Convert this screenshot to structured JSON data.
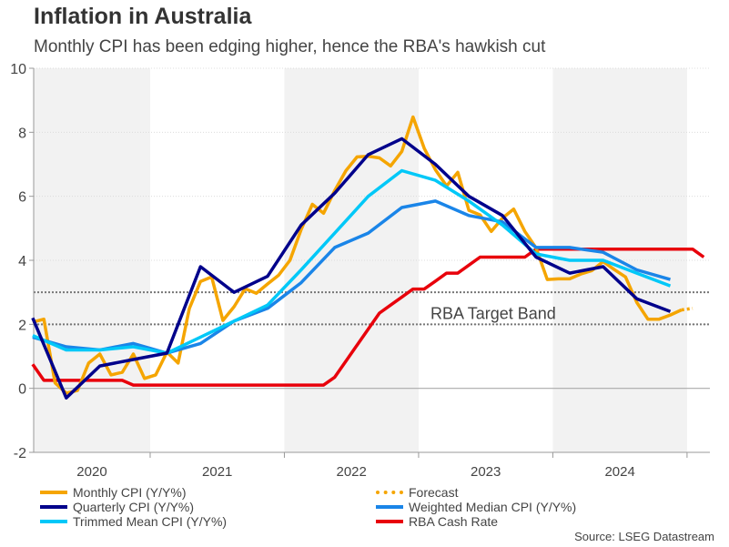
{
  "chart_data": {
    "type": "line",
    "title": "Inflation in Australia",
    "subtitle": "Monthly CPI has been edging higher, hence the RBA's hawkish cut",
    "ylim": [
      -2,
      10
    ],
    "yticks": [
      -2,
      0,
      2,
      4,
      6,
      8,
      10
    ],
    "xticks": [
      "2020",
      "2021",
      "2022",
      "2023",
      "2024"
    ],
    "shaded_years": [
      "2020",
      "2022",
      "2024"
    ],
    "grid": true,
    "target_band": {
      "label": "RBA Target Band",
      "low": 2,
      "high": 3
    },
    "legend_position": "bottom",
    "series": [
      {
        "name": "Monthly CPI (Y/Y%)",
        "color": "#f5a500",
        "frequency": "monthly",
        "start": "2020-02",
        "values": [
          2.07,
          2.16,
          0.17,
          -0.15,
          -0.07,
          0.79,
          1.07,
          0.42,
          0.5,
          1.07,
          0.31,
          0.42,
          1.13,
          0.79,
          2.49,
          3.34,
          3.48,
          2.12,
          2.55,
          3.11,
          2.97,
          3.26,
          3.54,
          4.0,
          4.96,
          5.75,
          5.47,
          6.18,
          6.8,
          7.23,
          7.25,
          7.2,
          6.95,
          7.4,
          8.48,
          7.5,
          6.83,
          6.32,
          6.75,
          5.56,
          5.42,
          4.9,
          5.32,
          5.6,
          4.9,
          4.39,
          3.4,
          3.42,
          3.42,
          3.57,
          3.68,
          3.96,
          3.71,
          3.48,
          2.69,
          2.16,
          2.16,
          2.29,
          2.45
        ]
      },
      {
        "name": "Forecast",
        "color": "#f5a500",
        "frequency": "monthly",
        "start": "2024-12",
        "dotted": true,
        "values": [
          2.45,
          2.5
        ]
      },
      {
        "name": "Quarterly CPI (Y/Y%)",
        "color": "#00008b",
        "frequency": "quarterly",
        "start": "2020-Q1",
        "values": [
          2.2,
          -0.3,
          0.7,
          0.9,
          1.1,
          3.8,
          3.0,
          3.5,
          5.1,
          6.1,
          7.3,
          7.8,
          7.0,
          6.0,
          5.4,
          4.1,
          3.6,
          3.8,
          2.8,
          2.4
        ]
      },
      {
        "name": "Weighted Median CPI (Y/Y%)",
        "color": "#1a85e8",
        "frequency": "quarterly",
        "start": "2020-Q1",
        "values": [
          1.6,
          1.3,
          1.2,
          1.4,
          1.1,
          1.4,
          2.1,
          2.5,
          3.3,
          4.4,
          4.85,
          5.65,
          5.85,
          5.4,
          5.2,
          4.4,
          4.4,
          4.25,
          3.7,
          3.4
        ]
      },
      {
        "name": "Trimmed Mean CPI (Y/Y%)",
        "color": "#00c8f8",
        "frequency": "quarterly",
        "start": "2020-Q1",
        "values": [
          1.65,
          1.2,
          1.2,
          1.3,
          1.1,
          1.6,
          2.1,
          2.6,
          3.7,
          4.85,
          6.0,
          6.8,
          6.5,
          5.85,
          5.1,
          4.2,
          4.0,
          4.0,
          3.6,
          3.2
        ]
      },
      {
        "name": "RBA Cash Rate",
        "color": "#e8000b",
        "frequency": "monthly",
        "start": "2020-02",
        "values": [
          0.75,
          0.25,
          0.25,
          0.25,
          0.25,
          0.25,
          0.25,
          0.25,
          0.25,
          0.1,
          0.1,
          0.1,
          0.1,
          0.1,
          0.1,
          0.1,
          0.1,
          0.1,
          0.1,
          0.1,
          0.1,
          0.1,
          0.1,
          0.1,
          0.1,
          0.1,
          0.1,
          0.35,
          0.85,
          1.35,
          1.85,
          2.35,
          2.6,
          2.85,
          3.1,
          3.1,
          3.35,
          3.6,
          3.6,
          3.85,
          4.1,
          4.1,
          4.1,
          4.1,
          4.1,
          4.35,
          4.35,
          4.35,
          4.35,
          4.35,
          4.35,
          4.35,
          4.35,
          4.35,
          4.35,
          4.35,
          4.35,
          4.35,
          4.35,
          4.35,
          4.1
        ]
      }
    ],
    "legend": [
      {
        "label": "Monthly CPI (Y/Y%)",
        "color": "#f5a500"
      },
      {
        "label": "Forecast",
        "color": "#f5a500",
        "dotted": true
      },
      {
        "label": "Quarterly CPI (Y/Y%)",
        "color": "#00008b"
      },
      {
        "label": "Weighted Median CPI (Y/Y%)",
        "color": "#1a85e8"
      },
      {
        "label": "Trimmed Mean CPI (Y/Y%)",
        "color": "#00c8f8"
      },
      {
        "label": "RBA Cash Rate",
        "color": "#e8000b"
      }
    ],
    "source": "Source: LSEG Datastream"
  }
}
